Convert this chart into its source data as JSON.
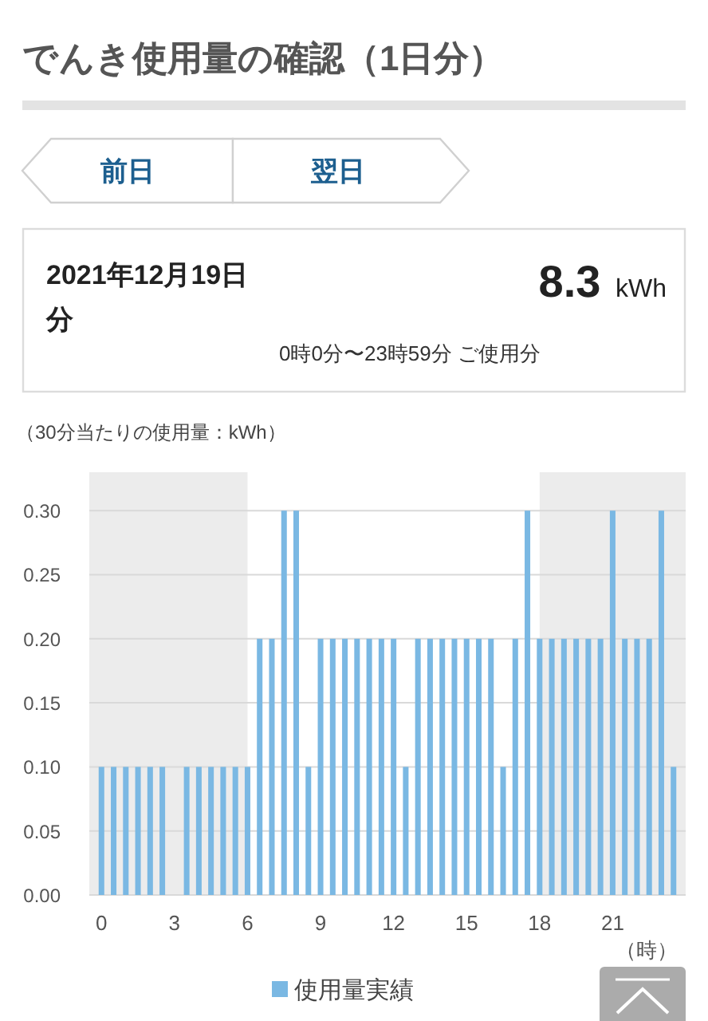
{
  "chart_data": {
    "type": "bar",
    "title": "でんき使用量の確認（1日分）",
    "ylabel": "（30分当たりの使用量：kWh）",
    "xlabel": "（時）",
    "x": [
      0,
      0.5,
      1,
      1.5,
      2,
      2.5,
      3,
      3.5,
      4,
      4.5,
      5,
      5.5,
      6,
      6.5,
      7,
      7.5,
      8,
      8.5,
      9,
      9.5,
      10,
      10.5,
      11,
      11.5,
      12,
      12.5,
      13,
      13.5,
      14,
      14.5,
      15,
      15.5,
      16,
      16.5,
      17,
      17.5,
      18,
      18.5,
      19,
      19.5,
      20,
      20.5,
      21,
      21.5,
      22,
      22.5,
      23,
      23.5
    ],
    "series": [
      {
        "name": "使用量実績",
        "color": "#7ab8e3",
        "values": [
          0.1,
          0.1,
          0.1,
          0.1,
          0.1,
          0.1,
          0,
          0.1,
          0.1,
          0.1,
          0.1,
          0.1,
          0.1,
          0.2,
          0.2,
          0.3,
          0.3,
          0.1,
          0.2,
          0.2,
          0.2,
          0.2,
          0.2,
          0.2,
          0.2,
          0.1,
          0.2,
          0.2,
          0.2,
          0.2,
          0.2,
          0.2,
          0.2,
          0.1,
          0.2,
          0.3,
          0.2,
          0.2,
          0.2,
          0.2,
          0.2,
          0.2,
          0.3,
          0.2,
          0.2,
          0.2,
          0.3,
          0.1
        ]
      }
    ],
    "xlim": [
      -0.5,
      24
    ],
    "xticks": [
      0,
      3,
      6,
      9,
      12,
      15,
      18,
      21
    ],
    "ylim": [
      0,
      0.33
    ],
    "yticks": [
      {
        "value": 0,
        "label": "0.00"
      },
      {
        "value": 0.05,
        "label": "0.05"
      },
      {
        "value": 0.1,
        "label": "0.10"
      },
      {
        "value": 0.15,
        "label": "0.15"
      },
      {
        "value": 0.2,
        "label": "0.20"
      },
      {
        "value": 0.25,
        "label": "0.25"
      },
      {
        "value": 0.3,
        "label": "0.30"
      }
    ],
    "grid": "y",
    "legend": "bottom",
    "bands": [
      {
        "axis": "x",
        "from": -0.5,
        "to": 6,
        "color": "#ececec"
      },
      {
        "axis": "x",
        "from": 18,
        "to": 24,
        "color": "#ececec"
      }
    ],
    "annotations": [
      "前日",
      "翌日",
      "2021年12月19日分",
      "**8.3** kWh",
      "0時0分〜23時59分 ご使用分"
    ]
  }
}
